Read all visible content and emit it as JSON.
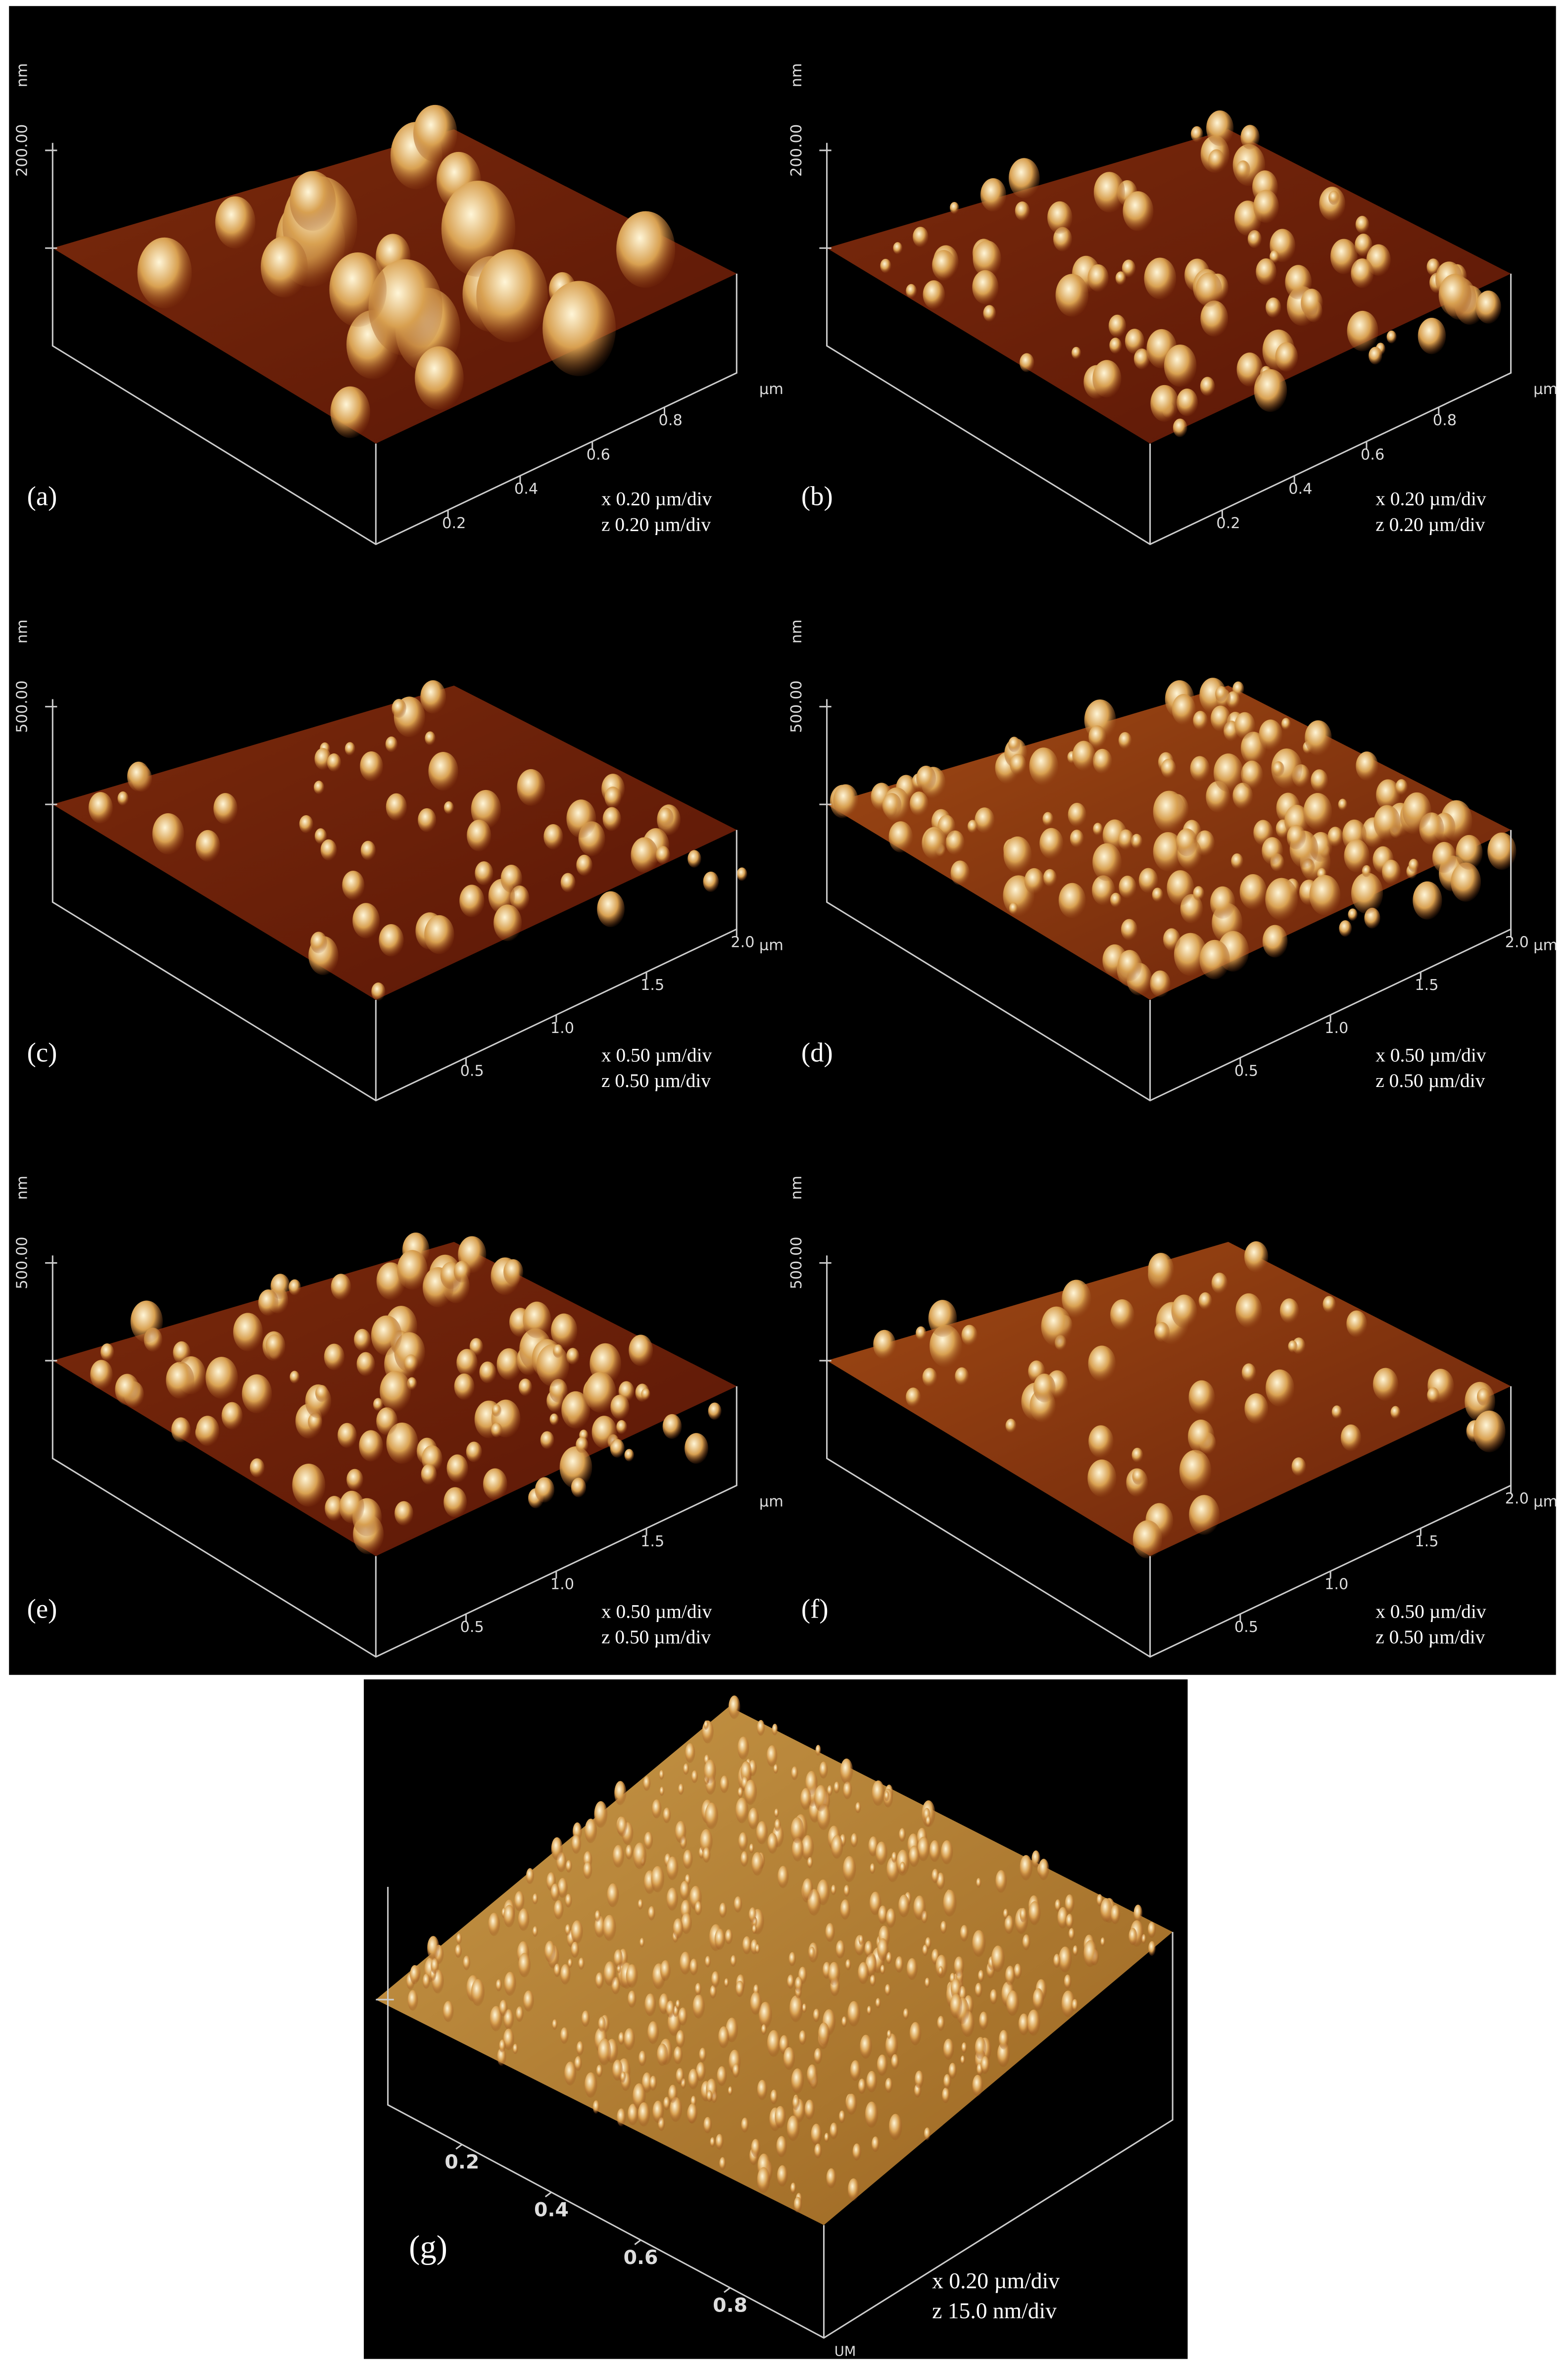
{
  "panels": [
    {
      "label": "(a)",
      "z_unit": "nm",
      "z_tick": "200.00",
      "x_unit": "µm",
      "x_ticks": [
        "0.2",
        "0.4",
        "0.6",
        "0.8"
      ],
      "scale": [
        "x 0.20 µm/div",
        "z 0.20 µm/div"
      ]
    },
    {
      "label": "(b)",
      "z_unit": "nm",
      "z_tick": "200.00",
      "x_unit": "µm",
      "x_ticks": [
        "0.2",
        "0.4",
        "0.6",
        "0.8"
      ],
      "scale": [
        "x 0.20 µm/div",
        "z 0.20 µm/div"
      ]
    },
    {
      "label": "(c)",
      "z_unit": "nm",
      "z_tick": "500.00",
      "x_unit": "µm",
      "x_ticks": [
        "0.5",
        "1.0",
        "1.5",
        "2.0"
      ],
      "scale": [
        "x 0.50 µm/div",
        "z 0.50 µm/div"
      ]
    },
    {
      "label": "(d)",
      "z_unit": "nm",
      "z_tick": "500.00",
      "x_unit": "µm",
      "x_ticks": [
        "0.5",
        "1.0",
        "1.5",
        "2.0"
      ],
      "scale": [
        "x 0.50 µm/div",
        "z 0.50 µm/div"
      ]
    },
    {
      "label": "(e)",
      "z_unit": "nm",
      "z_tick": "500.00",
      "x_unit": "µm",
      "x_ticks": [
        "0.5",
        "1.0",
        "1.5"
      ],
      "scale": [
        "x 0.50 µm/div",
        "z 0.50 µm/div"
      ]
    },
    {
      "label": "(f)",
      "z_unit": "nm",
      "z_tick": "500.00",
      "x_unit": "µm",
      "x_ticks": [
        "0.5",
        "1.0",
        "1.5",
        "2.0"
      ],
      "scale": [
        "x 0.50 µm/div",
        "z 0.50 µm/div"
      ]
    },
    {
      "label": "(g)",
      "x_unit": "UM",
      "x_ticks": [
        "0.2",
        "0.4",
        "0.6",
        "0.8"
      ],
      "scale": [
        "x 0.20 µm/div",
        "z 15.0 nm/div"
      ]
    }
  ]
}
